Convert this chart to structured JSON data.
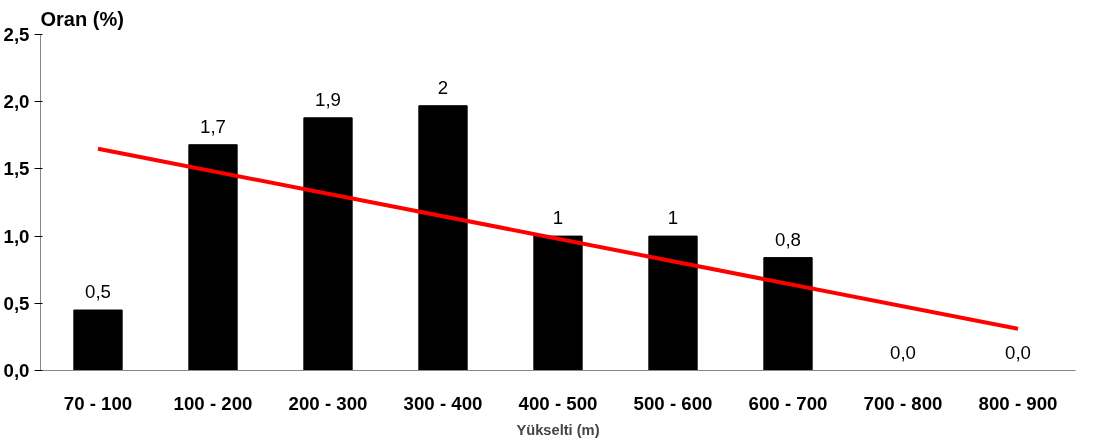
{
  "chart_data": {
    "type": "bar",
    "ylabel": "Oran (%)",
    "xlabel": "Yükselti (m)",
    "categories": [
      "70 - 100",
      "100 - 200",
      "200 - 300",
      "300 - 400",
      "400 - 500",
      "500 - 600",
      "600 - 700",
      "700 - 800",
      "800 - 900"
    ],
    "series": [
      {
        "color": "#000000",
        "values": [
          0.45,
          1.68,
          1.88,
          1.97,
          1.0,
          1.0,
          0.84,
          0.0,
          0.0
        ],
        "value_labels": [
          "0,5",
          "1,7",
          "1,9",
          "2",
          "1",
          "1",
          "0,8",
          "0,0",
          "0,0"
        ]
      },
      {
        "type": "line",
        "color": "#ff0000",
        "x": [
          "70 - 100",
          "800 - 900"
        ],
        "values": [
          1.65,
          0.31
        ]
      }
    ],
    "ylim": [
      0,
      2.5
    ],
    "yticks": [
      {
        "value": 0,
        "label": "0,0"
      },
      {
        "value": 0.5,
        "label": "0,5"
      },
      {
        "value": 1,
        "label": "1,0"
      },
      {
        "value": 1.5,
        "label": "1,5"
      },
      {
        "value": 2,
        "label": "2,0"
      },
      {
        "value": 2.5,
        "label": "2,5"
      }
    ],
    "grid": false
  }
}
